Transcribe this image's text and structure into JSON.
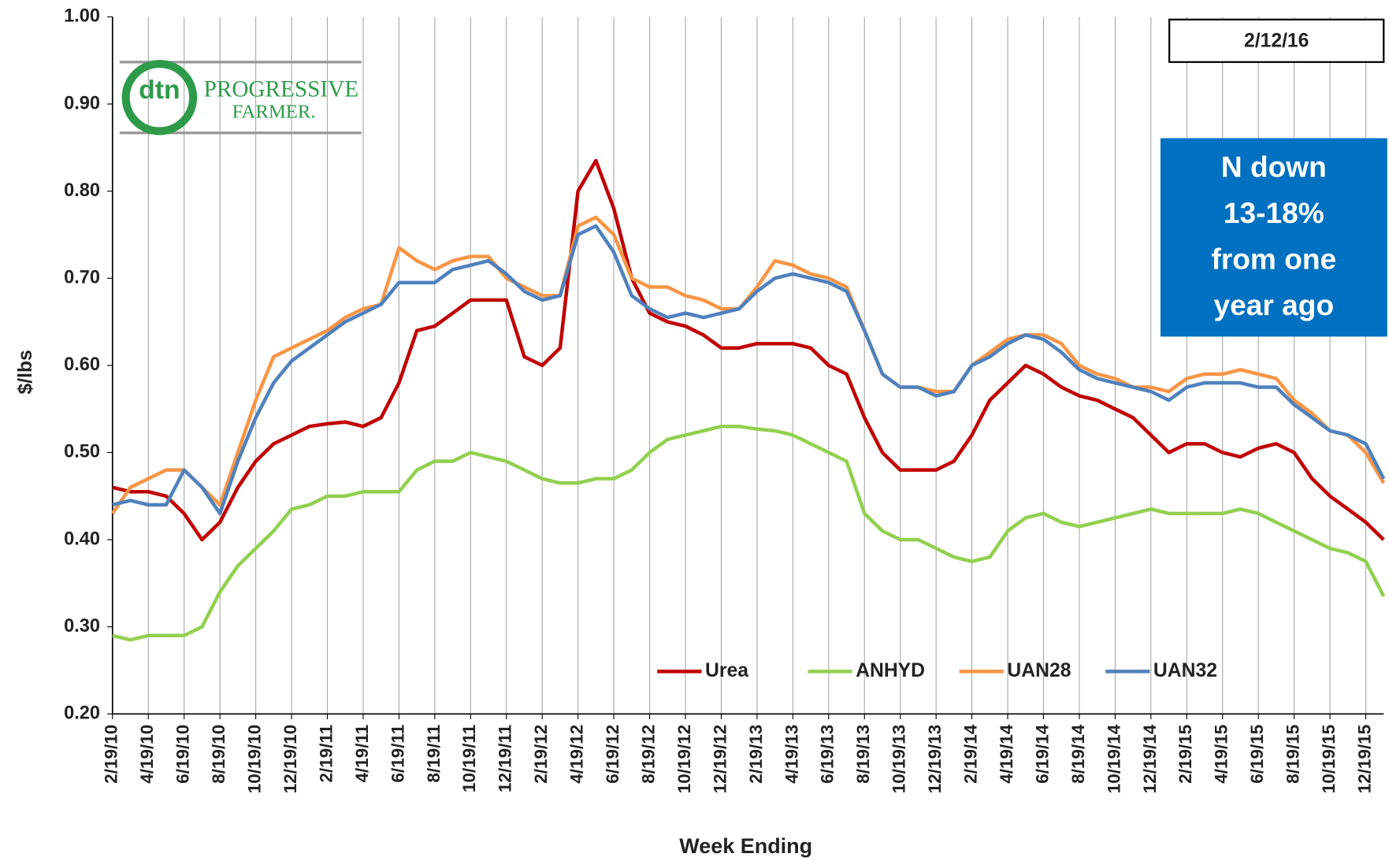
{
  "chart_data": {
    "type": "line",
    "y_label": "$/lbs",
    "x_label": "Week Ending",
    "date_box": "2/12/16",
    "annotation": [
      "N down",
      "13-18%",
      "from one",
      "year ago"
    ],
    "logo": {
      "mark": "dtn",
      "name": "PROGRESSIVE",
      "name2": "FARMER."
    },
    "categories": [
      "2/19/10",
      null,
      "4/19/10",
      null,
      "6/19/10",
      null,
      "8/19/10",
      null,
      "10/19/10",
      null,
      "12/19/10",
      null,
      "2/19/11",
      null,
      "4/19/11",
      null,
      "6/19/11",
      null,
      "8/19/11",
      null,
      "10/19/11",
      null,
      "12/19/11",
      null,
      "2/19/12",
      null,
      "4/19/12",
      null,
      "6/19/12",
      null,
      "8/19/12",
      null,
      "10/19/12",
      null,
      "12/19/12",
      null,
      "2/19/13",
      null,
      "4/19/13",
      null,
      "6/19/13",
      null,
      "8/19/13",
      null,
      "10/19/13",
      null,
      "12/19/13",
      null,
      "2/19/14",
      null,
      "4/19/14",
      null,
      "6/19/14",
      null,
      "8/19/14",
      null,
      "10/19/14",
      null,
      "12/19/14",
      null,
      "2/19/15",
      null,
      "4/19/15",
      null,
      "6/19/15",
      null,
      "8/19/15",
      null,
      "10/19/15",
      null,
      "12/19/15",
      null
    ],
    "series": [
      {
        "name": "Urea",
        "color": "#c00000",
        "values": [
          0.46,
          0.455,
          0.455,
          0.45,
          0.43,
          0.4,
          0.42,
          0.46,
          0.49,
          0.51,
          0.52,
          0.53,
          0.533,
          0.535,
          0.53,
          0.54,
          0.58,
          0.64,
          0.645,
          0.66,
          0.675,
          0.675,
          0.675,
          0.61,
          0.6,
          0.62,
          0.8,
          0.835,
          0.78,
          0.7,
          0.66,
          0.65,
          0.645,
          0.635,
          0.62,
          0.62,
          0.625,
          0.625,
          0.625,
          0.62,
          0.6,
          0.59,
          0.54,
          0.5,
          0.48,
          0.48,
          0.48,
          0.49,
          0.52,
          0.56,
          0.58,
          0.6,
          0.59,
          0.575,
          0.565,
          0.56,
          0.55,
          0.54,
          0.52,
          0.5,
          0.51,
          0.51,
          0.5,
          0.495,
          0.505,
          0.51,
          0.5,
          0.47,
          0.45,
          0.435,
          0.42,
          0.4
        ]
      },
      {
        "name": "ANHYD",
        "color": "#92d050",
        "values": [
          0.29,
          0.285,
          0.29,
          0.29,
          0.29,
          0.3,
          0.34,
          0.37,
          0.39,
          0.41,
          0.435,
          0.44,
          0.45,
          0.45,
          0.455,
          0.455,
          0.455,
          0.48,
          0.49,
          0.49,
          0.5,
          0.495,
          0.49,
          0.48,
          0.47,
          0.465,
          0.465,
          0.47,
          0.47,
          0.48,
          0.5,
          0.515,
          0.52,
          0.525,
          0.53,
          0.53,
          0.527,
          0.525,
          0.52,
          0.51,
          0.5,
          0.49,
          0.43,
          0.41,
          0.4,
          0.4,
          0.39,
          0.38,
          0.375,
          0.38,
          0.41,
          0.425,
          0.43,
          0.42,
          0.415,
          0.42,
          0.425,
          0.43,
          0.435,
          0.43,
          0.43,
          0.43,
          0.43,
          0.435,
          0.43,
          0.42,
          0.41,
          0.4,
          0.39,
          0.385,
          0.375,
          0.335
        ]
      },
      {
        "name": "UAN28",
        "color": "#f79646",
        "values": [
          0.43,
          0.46,
          0.47,
          0.48,
          0.48,
          0.46,
          0.44,
          0.5,
          0.56,
          0.61,
          0.62,
          0.63,
          0.64,
          0.655,
          0.665,
          0.67,
          0.735,
          0.72,
          0.71,
          0.72,
          0.725,
          0.725,
          0.7,
          0.69,
          0.68,
          0.68,
          0.76,
          0.77,
          0.75,
          0.7,
          0.69,
          0.69,
          0.68,
          0.675,
          0.665,
          0.665,
          0.69,
          0.72,
          0.715,
          0.705,
          0.7,
          0.69,
          0.64,
          0.59,
          0.575,
          0.575,
          0.57,
          0.57,
          0.6,
          0.615,
          0.63,
          0.635,
          0.635,
          0.625,
          0.6,
          0.59,
          0.585,
          0.575,
          0.575,
          0.57,
          0.585,
          0.59,
          0.59,
          0.595,
          0.59,
          0.585,
          0.56,
          0.545,
          0.525,
          0.52,
          0.5,
          0.465
        ]
      },
      {
        "name": "UAN32",
        "color": "#4f81bd",
        "values": [
          0.44,
          0.445,
          0.44,
          0.44,
          0.48,
          0.46,
          0.43,
          0.49,
          0.54,
          0.58,
          0.605,
          0.62,
          0.635,
          0.65,
          0.66,
          0.67,
          0.695,
          0.695,
          0.695,
          0.71,
          0.715,
          0.72,
          0.705,
          0.685,
          0.675,
          0.68,
          0.75,
          0.76,
          0.73,
          0.68,
          0.665,
          0.655,
          0.66,
          0.655,
          0.66,
          0.665,
          0.685,
          0.7,
          0.705,
          0.7,
          0.695,
          0.685,
          0.64,
          0.59,
          0.575,
          0.575,
          0.565,
          0.57,
          0.6,
          0.61,
          0.625,
          0.635,
          0.63,
          0.615,
          0.595,
          0.585,
          0.58,
          0.575,
          0.57,
          0.56,
          0.575,
          0.58,
          0.58,
          0.58,
          0.575,
          0.575,
          0.555,
          0.54,
          0.525,
          0.52,
          0.51,
          0.47
        ]
      }
    ],
    "ylim": [
      0.2,
      1.0
    ],
    "yticks": [
      {
        "value": 0.2,
        "label": "0.20"
      },
      {
        "value": 0.3,
        "label": "0.30"
      },
      {
        "value": 0.4,
        "label": "0.40"
      },
      {
        "value": 0.5,
        "label": "0.50"
      },
      {
        "value": 0.6,
        "label": "0.60"
      },
      {
        "value": 0.7,
        "label": "0.70"
      },
      {
        "value": 0.8,
        "label": "0.80"
      },
      {
        "value": 0.9,
        "label": "0.90"
      },
      {
        "value": 1.0,
        "label": "1.00"
      }
    ],
    "grid": true,
    "legend": "bottom-right"
  }
}
